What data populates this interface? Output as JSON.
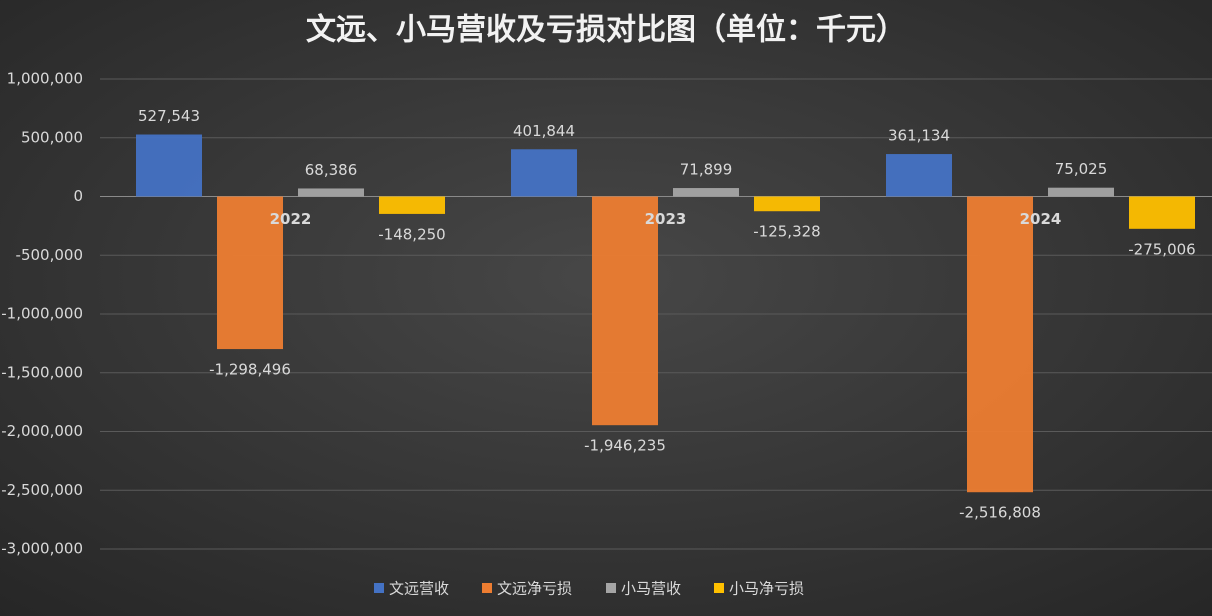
{
  "chart_data": {
    "type": "bar",
    "title": "文远、小马营收及亏损对比图（单位：千元）",
    "categories": [
      "2022",
      "2023",
      "2024"
    ],
    "series": [
      {
        "name": "文远营收",
        "color": "#4472c4",
        "values": [
          527543,
          401844,
          361134
        ],
        "value_labels": [
          "527,543",
          "401,844",
          "361,134"
        ]
      },
      {
        "name": "文远净亏损",
        "color": "#ed7d31",
        "values": [
          -1298496,
          -1946235,
          -2516808
        ],
        "value_labels": [
          "-1,298,496",
          "-1,946,235",
          "-2,516,808"
        ]
      },
      {
        "name": "小马营收",
        "color": "#a5a5a5",
        "values": [
          68386,
          71899,
          75025
        ],
        "value_labels": [
          "68,386",
          "71,899",
          "75,025"
        ]
      },
      {
        "name": "小马净亏损",
        "color": "#ffc000",
        "values": [
          -148250,
          -125328,
          -275006
        ],
        "value_labels": [
          "-148,250",
          "-125,328",
          "-275,006"
        ]
      }
    ],
    "ylim": [
      -3000000,
      1000000
    ],
    "yticks": [
      {
        "value": -3000000,
        "label": "-3,000,000"
      },
      {
        "value": -2500000,
        "label": "-2,500,000"
      },
      {
        "value": -2000000,
        "label": "-2,000,000"
      },
      {
        "value": -1500000,
        "label": "-1,500,000"
      },
      {
        "value": -1000000,
        "label": "-1,000,000"
      },
      {
        "value": -500000,
        "label": "-500,000"
      },
      0,
      {
        "value": 500000,
        "label": "500,000"
      },
      {
        "value": 1000000,
        "label": "1,000,000"
      }
    ],
    "grid": true,
    "legend": "bottom"
  }
}
